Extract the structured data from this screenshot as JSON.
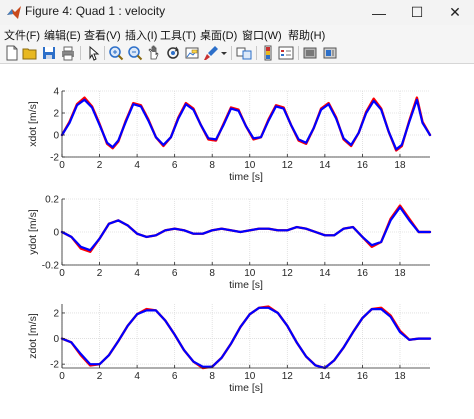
{
  "window": {
    "title": "Figure 4: Quad 1 : velocity",
    "minimize_glyph": "—",
    "maximize_glyph": "☐",
    "close_glyph": "✕"
  },
  "menu": [
    {
      "label": "文件(F)"
    },
    {
      "label": "编辑(E)"
    },
    {
      "label": "查看(V)"
    },
    {
      "label": "插入(I)"
    },
    {
      "label": "工具(T)"
    },
    {
      "label": "桌面(D)"
    },
    {
      "label": "窗口(W)"
    },
    {
      "label": "帮助(H)"
    }
  ],
  "toolbar": {
    "icons": [
      "new-figure-icon",
      "open-file-icon",
      "save-icon",
      "print-icon",
      "edit-plot-icon",
      "zoom-in-icon",
      "zoom-out-icon",
      "pan-icon",
      "rotate-3d-icon",
      "data-cursor-icon",
      "brush-icon",
      "brush-dropdown-icon",
      "link-plot-icon",
      "insert-colorbar-icon",
      "insert-legend-icon",
      "hide-plot-tools-icon",
      "show-plot-tools-icon"
    ],
    "colors": {
      "blue": "#2c6fc9",
      "yellow": "#e8b820"
    }
  },
  "chart_data": [
    {
      "type": "line",
      "xlabel": "time [s]",
      "ylabel": "xdot [m/s]",
      "xlim": [
        0,
        19.6
      ],
      "ylim": [
        -2,
        4
      ],
      "xticks": [
        "0",
        "2",
        "4",
        "6",
        "8",
        "10",
        "12",
        "14",
        "16",
        "18"
      ],
      "yticks": [
        "-2",
        "0",
        "2",
        "4"
      ],
      "grid": true,
      "series": [
        {
          "color": "#ff0000",
          "x": [
            0,
            0.4,
            0.8,
            1.2,
            1.6,
            2.0,
            2.4,
            2.7,
            3.0,
            3.4,
            3.8,
            4.2,
            4.6,
            5.0,
            5.4,
            5.8,
            6.2,
            6.6,
            7.0,
            7.4,
            7.8,
            8.2,
            8.6,
            9.0,
            9.4,
            9.8,
            10.2,
            10.6,
            11.0,
            11.4,
            11.8,
            12.2,
            12.6,
            13.0,
            13.4,
            13.8,
            14.2,
            14.6,
            15.0,
            15.4,
            15.8,
            16.2,
            16.6,
            17.0,
            17.4,
            17.8,
            18.1,
            18.5,
            18.9,
            19.2,
            19.6
          ],
          "y": [
            0,
            1.2,
            2.8,
            3.4,
            2.6,
            1.0,
            -0.8,
            -1.2,
            -0.6,
            1.3,
            2.9,
            2.7,
            1.4,
            -0.2,
            -1.0,
            -0.2,
            1.6,
            2.9,
            2.4,
            0.9,
            -0.4,
            -0.5,
            1.0,
            2.5,
            2.3,
            0.8,
            -0.4,
            -0.2,
            1.4,
            2.7,
            2.5,
            0.9,
            -0.5,
            -0.8,
            0.6,
            2.4,
            2.9,
            1.6,
            -0.4,
            -1.0,
            0.2,
            2.1,
            3.3,
            2.4,
            0.3,
            -1.4,
            -1.0,
            1.3,
            3.4,
            1.2,
            0
          ]
        },
        {
          "color": "#0000ff",
          "x": [
            0,
            0.4,
            0.8,
            1.2,
            1.6,
            2.0,
            2.4,
            2.7,
            3.0,
            3.4,
            3.8,
            4.2,
            4.6,
            5.0,
            5.4,
            5.8,
            6.2,
            6.6,
            7.0,
            7.4,
            7.8,
            8.2,
            8.6,
            9.0,
            9.4,
            9.8,
            10.2,
            10.6,
            11.0,
            11.4,
            11.8,
            12.2,
            12.6,
            13.0,
            13.4,
            13.8,
            14.2,
            14.6,
            15.0,
            15.4,
            15.8,
            16.2,
            16.6,
            17.0,
            17.4,
            17.8,
            18.1,
            18.5,
            18.9,
            19.2,
            19.6
          ],
          "y": [
            0,
            1.1,
            2.7,
            3.2,
            2.5,
            0.9,
            -0.7,
            -1.1,
            -0.5,
            1.2,
            2.8,
            2.6,
            1.3,
            -0.2,
            -0.9,
            -0.2,
            1.5,
            2.8,
            2.3,
            0.9,
            -0.3,
            -0.4,
            0.9,
            2.4,
            2.2,
            0.8,
            -0.3,
            -0.2,
            1.3,
            2.6,
            2.4,
            0.9,
            -0.4,
            -0.7,
            0.6,
            2.3,
            2.8,
            1.5,
            -0.3,
            -0.9,
            0.2,
            2.0,
            3.1,
            2.3,
            0.3,
            -1.3,
            -0.9,
            1.2,
            3.2,
            1.1,
            0
          ]
        }
      ]
    },
    {
      "type": "line",
      "xlabel": "time [s]",
      "ylabel": "ydot [m/s]",
      "xlim": [
        0,
        19.6
      ],
      "ylim": [
        -0.2,
        0.2
      ],
      "xticks": [
        "0",
        "2",
        "4",
        "6",
        "8",
        "10",
        "12",
        "14",
        "16",
        "18"
      ],
      "yticks": [
        "-0.2",
        "0",
        "0.2"
      ],
      "grid": true,
      "series": [
        {
          "color": "#ff0000",
          "x": [
            0,
            0.5,
            1.0,
            1.5,
            2.0,
            2.5,
            3.0,
            3.5,
            4.0,
            4.5,
            5.0,
            5.5,
            6.0,
            6.5,
            7.0,
            7.5,
            8.0,
            8.5,
            9.0,
            9.5,
            10.0,
            10.5,
            11.0,
            11.5,
            12.0,
            12.5,
            13.0,
            13.5,
            14.0,
            14.5,
            15.0,
            15.5,
            16.0,
            16.5,
            17.0,
            17.5,
            18.0,
            18.5,
            19.0,
            19.6
          ],
          "y": [
            0,
            -0.03,
            -0.1,
            -0.12,
            -0.04,
            0.05,
            0.07,
            0.04,
            -0.01,
            -0.03,
            -0.02,
            0.01,
            0.02,
            0.01,
            -0.01,
            -0.01,
            0.01,
            0.02,
            0.01,
            0,
            0.01,
            0.02,
            0.02,
            0.01,
            0.01,
            0.03,
            0.02,
            0,
            -0.02,
            -0.02,
            0.02,
            0.03,
            -0.03,
            -0.09,
            -0.06,
            0.08,
            0.16,
            0.08,
            0,
            0
          ]
        },
        {
          "color": "#0000ff",
          "x": [
            0,
            0.5,
            1.0,
            1.5,
            2.0,
            2.5,
            3.0,
            3.5,
            4.0,
            4.5,
            5.0,
            5.5,
            6.0,
            6.5,
            7.0,
            7.5,
            8.0,
            8.5,
            9.0,
            9.5,
            10.0,
            10.5,
            11.0,
            11.5,
            12.0,
            12.5,
            13.0,
            13.5,
            14.0,
            14.5,
            15.0,
            15.5,
            16.0,
            16.5,
            17.0,
            17.5,
            18.0,
            18.5,
            19.0,
            19.6
          ],
          "y": [
            0,
            -0.03,
            -0.09,
            -0.11,
            -0.04,
            0.05,
            0.07,
            0.04,
            -0.01,
            -0.03,
            -0.02,
            0.01,
            0.02,
            0.01,
            -0.01,
            -0.01,
            0.01,
            0.02,
            0.01,
            0,
            0.01,
            0.02,
            0.02,
            0.01,
            0.01,
            0.03,
            0.02,
            0,
            -0.02,
            -0.02,
            0.02,
            0.03,
            -0.03,
            -0.08,
            -0.06,
            0.07,
            0.15,
            0.07,
            0,
            0
          ]
        }
      ]
    },
    {
      "type": "line",
      "xlabel": "time [s]",
      "ylabel": "zdot [m/s]",
      "xlim": [
        0,
        19.6
      ],
      "ylim": [
        -2.3,
        2.7
      ],
      "xticks": [
        "0",
        "2",
        "4",
        "6",
        "8",
        "10",
        "12",
        "14",
        "16",
        "18"
      ],
      "yticks": [
        "-2",
        "0",
        "2"
      ],
      "grid": true,
      "series": [
        {
          "color": "#ff0000",
          "x": [
            0,
            0.5,
            1.0,
            1.5,
            2.0,
            2.5,
            3.0,
            3.5,
            4.0,
            4.5,
            5.0,
            5.5,
            6.0,
            6.5,
            7.0,
            7.5,
            8.0,
            8.5,
            9.0,
            9.5,
            10.0,
            10.5,
            11.0,
            11.5,
            12.0,
            12.5,
            13.0,
            13.5,
            14.0,
            14.5,
            15.0,
            15.5,
            16.0,
            16.5,
            17.0,
            17.5,
            18.0,
            18.5,
            19.0,
            19.6
          ],
          "y": [
            0,
            -0.3,
            -1.3,
            -2.1,
            -2.0,
            -1.3,
            -0.2,
            1.0,
            1.9,
            2.3,
            2.2,
            1.4,
            0.3,
            -0.9,
            -1.8,
            -2.3,
            -2.2,
            -1.5,
            -0.4,
            0.9,
            1.9,
            2.4,
            2.5,
            2.0,
            1.0,
            -0.3,
            -1.4,
            -2.1,
            -2.3,
            -1.7,
            -0.7,
            0.5,
            1.6,
            2.3,
            2.4,
            1.8,
            0.6,
            -0.1,
            0,
            0
          ]
        },
        {
          "color": "#0000ff",
          "x": [
            0,
            0.5,
            1.0,
            1.5,
            2.0,
            2.5,
            3.0,
            3.5,
            4.0,
            4.5,
            5.0,
            5.5,
            6.0,
            6.5,
            7.0,
            7.5,
            8.0,
            8.5,
            9.0,
            9.5,
            10.0,
            10.5,
            11.0,
            11.5,
            12.0,
            12.5,
            13.0,
            13.5,
            14.0,
            14.5,
            15.0,
            15.5,
            16.0,
            16.5,
            17.0,
            17.5,
            18.0,
            18.5,
            19.0,
            19.6
          ],
          "y": [
            0,
            -0.3,
            -1.2,
            -2.0,
            -2.0,
            -1.3,
            -0.2,
            1.0,
            1.9,
            2.2,
            2.2,
            1.4,
            0.3,
            -0.9,
            -1.8,
            -2.2,
            -2.2,
            -1.5,
            -0.4,
            0.9,
            1.9,
            2.4,
            2.4,
            2.0,
            1.0,
            -0.3,
            -1.4,
            -2.1,
            -2.3,
            -1.7,
            -0.7,
            0.5,
            1.6,
            2.3,
            2.3,
            1.7,
            0.5,
            -0.1,
            0,
            0
          ]
        }
      ]
    }
  ]
}
